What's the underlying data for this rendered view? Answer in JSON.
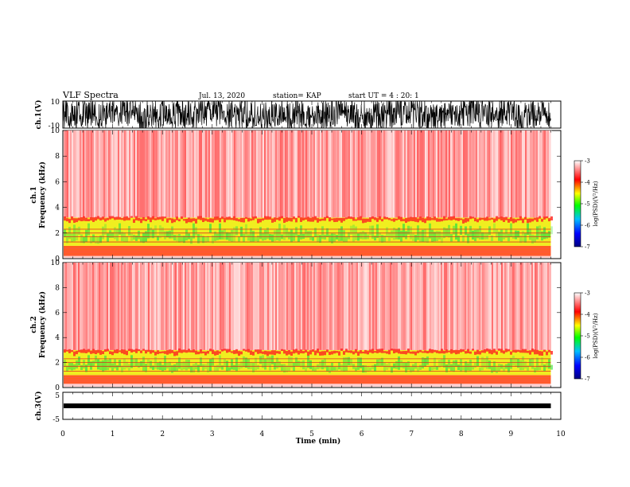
{
  "header": {
    "title": "VLF Spectra",
    "date": "Jul. 13, 2020",
    "station": "station= KAP",
    "start": "start UT = 4 : 20: 1"
  },
  "chart_data": [
    {
      "type": "line",
      "panel": "ch1-waveform",
      "ylabel": "ch.1(V)",
      "ylim": [
        -10,
        10
      ],
      "yticks": [
        "10",
        "-10"
      ],
      "xlim": [
        0,
        10
      ]
    },
    {
      "type": "heatmap",
      "panel": "ch1-spectrogram",
      "ylabel_line1": "ch.1",
      "ylabel_line2": "Frequency (kHz)",
      "ylim": [
        0,
        10
      ],
      "yticks": [
        "0",
        "2",
        "4",
        "6",
        "8",
        "10"
      ],
      "xlim": [
        0,
        10
      ],
      "data_end_min": 9.8,
      "bands": [
        {
          "from": 0.2,
          "to": 1.0,
          "level": "yellow-green-red"
        },
        {
          "from": 1.0,
          "to": 3.2,
          "level": "yellow-green"
        },
        {
          "from": 3.2,
          "to": 10.0,
          "level": "red"
        }
      ],
      "colorbar": {
        "label": "log(PSD)(V²/Hz)",
        "ticks": [
          "-3",
          "-4",
          "-5",
          "-6",
          "-7"
        ],
        "range": [
          -7,
          -3
        ],
        "colors": [
          "#000080",
          "#0000ff",
          "#00c0ff",
          "#00ff00",
          "#ffff00",
          "#ff0000",
          "#ffffff"
        ]
      }
    },
    {
      "type": "heatmap",
      "panel": "ch2-spectrogram",
      "ylabel_line1": "ch.2",
      "ylabel_line2": "Frequency (kHz)",
      "ylim": [
        0,
        10
      ],
      "yticks": [
        "0",
        "2",
        "4",
        "6",
        "8",
        "10"
      ],
      "xlim": [
        0,
        10
      ],
      "data_end_min": 9.8,
      "bands": [
        {
          "from": 0.3,
          "to": 1.0,
          "level": "yellow-green-red"
        },
        {
          "from": 1.0,
          "to": 3.0,
          "level": "yellow-green"
        },
        {
          "from": 3.0,
          "to": 10.0,
          "level": "red"
        }
      ],
      "colorbar": {
        "label": "log(PSD)(V²/Hz)",
        "ticks": [
          "-3",
          "-4",
          "-5",
          "-6",
          "-7"
        ],
        "range": [
          -7,
          -3
        ]
      }
    },
    {
      "type": "line",
      "panel": "ch3-waveform",
      "ylabel": "ch.3(V)",
      "ylim": [
        -5,
        5
      ],
      "yticks": [
        "5",
        "-5"
      ],
      "level": 0,
      "xlim": [
        0,
        10
      ]
    }
  ],
  "xaxis": {
    "label": "Time (min)",
    "ticks": [
      "0",
      "1",
      "2",
      "3",
      "4",
      "5",
      "6",
      "7",
      "8",
      "9",
      "10"
    ]
  }
}
